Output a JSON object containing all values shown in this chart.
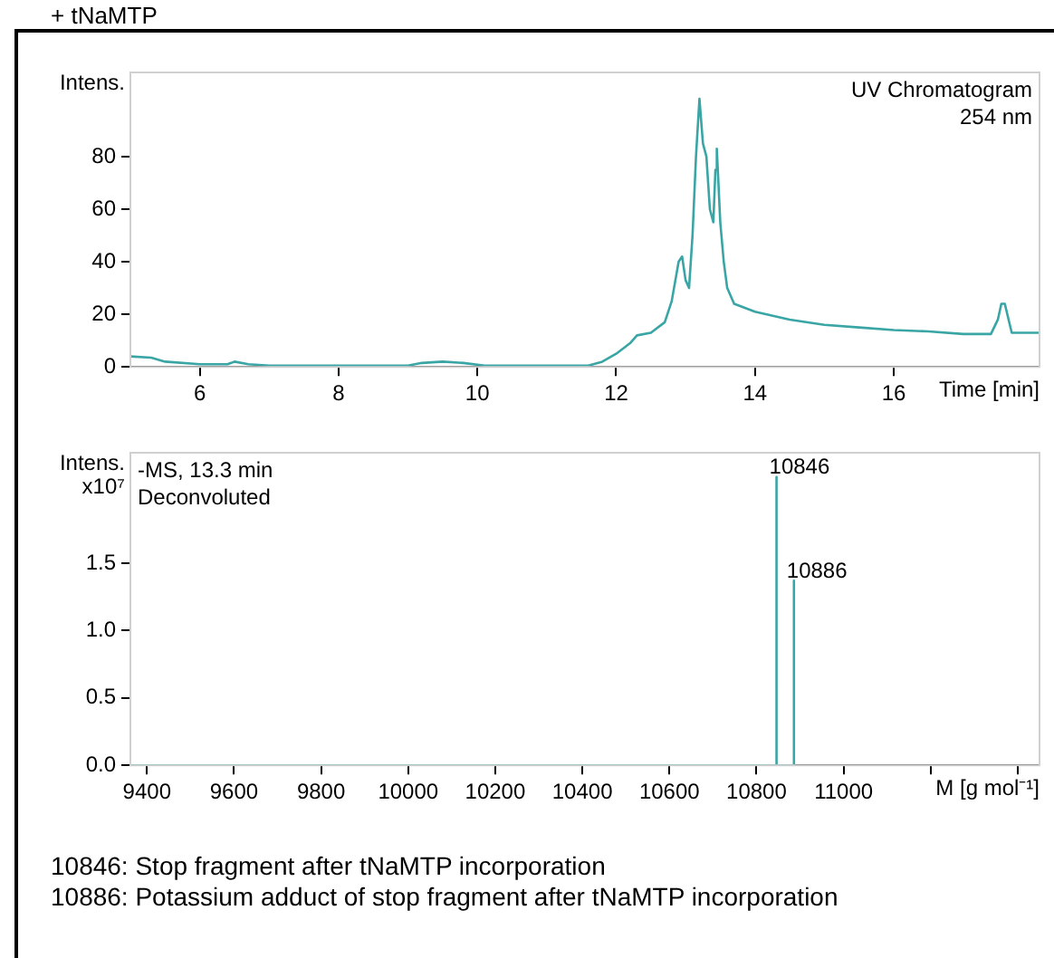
{
  "chart_data": [
    {
      "type": "line",
      "title": "+ tNaMTP",
      "xlabel": "Time [min]",
      "ylabel": "Intens.",
      "annotations": [
        "UV Chromatogram",
        "254 nm"
      ],
      "color": "#3aa5a5",
      "marker": "none",
      "grid": false,
      "legend": false,
      "xlim": [
        5,
        18.1
      ],
      "xticks": [
        6,
        8,
        10,
        12,
        14,
        16
      ],
      "ylim": [
        0,
        112
      ],
      "yticks": [
        0,
        20,
        40,
        60,
        80
      ],
      "x": [
        5.0,
        5.3,
        5.5,
        6.0,
        6.4,
        6.5,
        6.7,
        7.0,
        9.0,
        9.2,
        9.5,
        9.8,
        10.1,
        11.6,
        11.8,
        12.0,
        12.2,
        12.3,
        12.5,
        12.7,
        12.8,
        12.9,
        12.95,
        13.0,
        13.05,
        13.1,
        13.15,
        13.2,
        13.25,
        13.3,
        13.35,
        13.4,
        13.43,
        13.45,
        13.5,
        13.55,
        13.6,
        13.7,
        14.0,
        14.5,
        15.0,
        15.5,
        16.0,
        16.5,
        17.0,
        17.4,
        17.5,
        17.55,
        17.6,
        17.7,
        18.1
      ],
      "values": [
        4,
        3.5,
        2,
        1,
        1,
        2,
        1,
        0.5,
        0.5,
        1.5,
        2,
        1.5,
        0.5,
        0.5,
        2,
        5,
        9,
        12,
        13,
        17,
        25,
        40,
        42,
        33,
        30,
        50,
        80,
        102,
        85,
        80,
        60,
        55,
        75,
        83,
        55,
        40,
        30,
        24,
        21,
        18,
        16,
        15,
        14,
        13.5,
        12.5,
        12.5,
        18,
        24,
        24,
        13,
        13
      ]
    },
    {
      "type": "line",
      "xlabel": "M [g mol⁻¹]",
      "ylabel": "Intens. x10⁷",
      "annotations": [
        "-MS, 13.3 min",
        "Deconvoluted",
        {
          "text": "10846",
          "x": 10846,
          "y": 2.14
        },
        {
          "text": "10886",
          "x": 10886,
          "y": 1.37
        }
      ],
      "color": "#3aa5a5",
      "marker": "none",
      "grid": false,
      "legend": false,
      "xlim": [
        9362,
        11450
      ],
      "xticks": [
        9400,
        9600,
        9800,
        10000,
        10200,
        10400,
        10600,
        10800,
        11000,
        {
          "value": 11200,
          "label": null
        },
        {
          "value": 11400,
          "label": null
        }
      ],
      "ylim": [
        0,
        2.32
      ],
      "yticks": [
        {
          "value": 0,
          "label": "0.0"
        },
        {
          "value": 0.5,
          "label": "0.5"
        },
        {
          "value": 1,
          "label": "1.0"
        },
        {
          "value": 1.5,
          "label": "1.5"
        }
      ],
      "x": [
        9362,
        10846,
        10846,
        10846,
        10886,
        10886,
        10886
      ],
      "values": [
        0,
        0,
        2.14,
        0,
        0,
        1.37,
        0
      ]
    },
    {
      "type": "other",
      "annotations": [
        "10846: Stop fragment after tNaMTP incorporation",
        "10886: Potassium adduct of stop fragment after tNaMTP incorporation"
      ]
    }
  ]
}
